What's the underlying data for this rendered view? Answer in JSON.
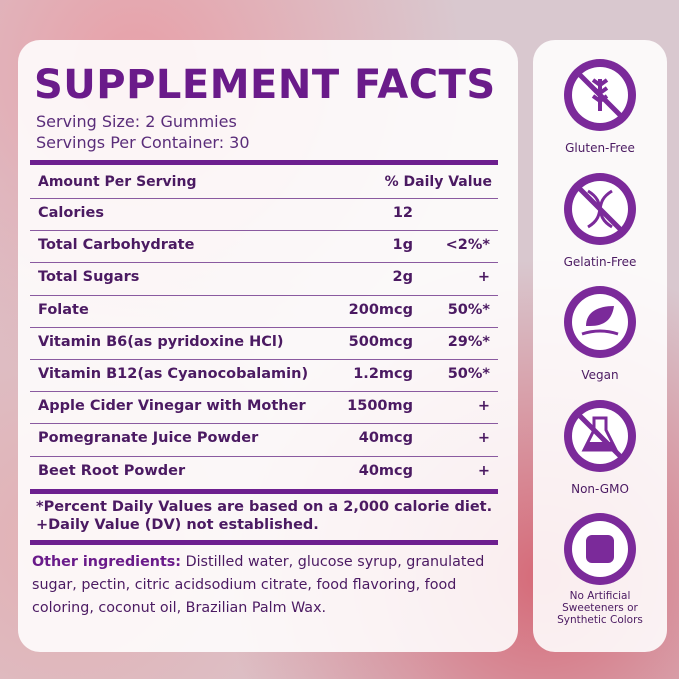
{
  "header": {
    "title": "SUPPLEMENT FACTS",
    "serving_size": "Serving Size: 2 Gummies",
    "servings_per_container": "Servings Per Container: 30"
  },
  "table": {
    "columns": [
      "Amount Per Serving",
      "% Daily Value"
    ],
    "rows": [
      [
        "Calories",
        "12",
        ""
      ],
      [
        "Total Carbohydrate",
        "1g",
        "<2%*"
      ],
      [
        "Total Sugars",
        "2g",
        "+"
      ],
      [
        "Folate",
        "200mcg",
        "50%*"
      ],
      [
        "Vitamin B6(as pyridoxine HCl)",
        "500mcg",
        "29%*"
      ],
      [
        "Vitamin B12(as Cyanocobalamin)",
        "1.2mcg",
        "50%*"
      ],
      [
        "Apple Cider Vinegar with Mother",
        "1500mg",
        "+"
      ],
      [
        "Pomegranate Juice Powder",
        "40mcg",
        "+"
      ],
      [
        "Beet Root Powder",
        "40mcg",
        "+"
      ]
    ]
  },
  "footnotes": [
    "*Percent Daily Values are based on a 2,000 calorie diet.",
    "+Daily Value (DV) not established."
  ],
  "other_ingredients": {
    "label": "Other ingredients:",
    "text": "Distilled water, glucose syrup, granulated sugar, pectin, citric acidsodium citrate, food flavoring, food coloring, coconut oil, Brazilian Palm Wax."
  },
  "badges": [
    "Gluten-Free",
    "Gelatin-Free",
    "Vegan",
    "Non-GMO",
    "No Artificial Sweeteners or Synthetic Colors"
  ]
}
